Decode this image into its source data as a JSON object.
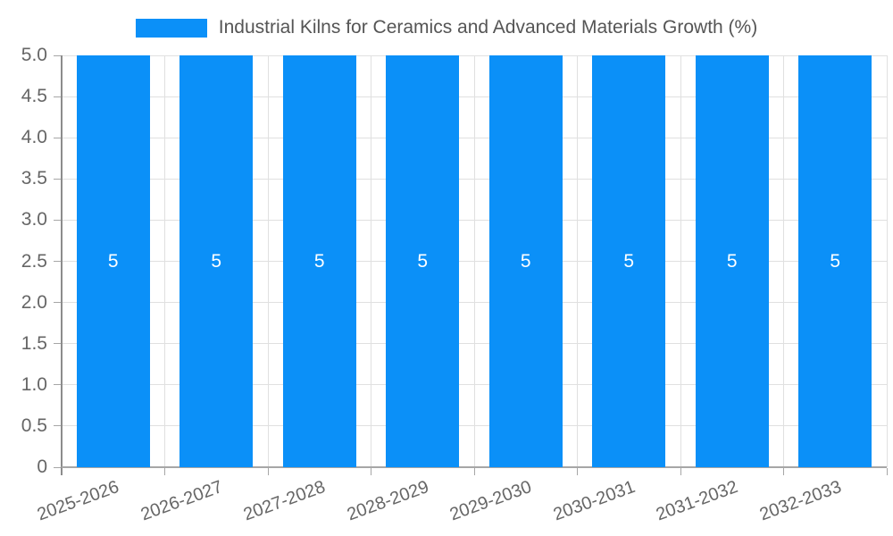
{
  "legend": {
    "label": "Industrial Kilns for Ceramics and Advanced Materials Growth (%)"
  },
  "chart_data": {
    "type": "bar",
    "title": "Industrial Kilns for Ceramics and Advanced Materials Growth (%)",
    "categories": [
      "2025-2026",
      "2026-2027",
      "2027-2028",
      "2028-2029",
      "2029-2030",
      "2030-2031",
      "2031-2032",
      "2032-2033"
    ],
    "values": [
      5,
      5,
      5,
      5,
      5,
      5,
      5,
      5
    ],
    "bar_value_labels": [
      "5",
      "5",
      "5",
      "5",
      "5",
      "5",
      "5",
      "5"
    ],
    "xlabel": "",
    "ylabel": "",
    "ylim": [
      0,
      5
    ],
    "y_tick_labels": [
      "5.0",
      "4.5",
      "4.0",
      "3.5",
      "3.0",
      "2.5",
      "2.0",
      "1.5",
      "1.0",
      "0.5",
      "0"
    ],
    "grid": true,
    "legend_position": "top",
    "colors": {
      "bar": "#0B90F8",
      "grid_line": "#E0E0E0",
      "axis_line": "#A6A6A6",
      "y_axis_line": "#8C8C8C",
      "tick_label": "#666666",
      "legend_text": "#555555",
      "value_label": "#FFFFFF",
      "background": "#FFFFFF"
    }
  }
}
